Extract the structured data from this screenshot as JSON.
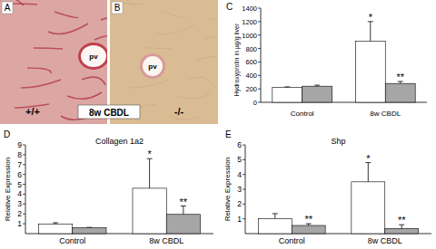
{
  "panels": [
    {
      "letter": "A",
      "vessel": "pv",
      "genotype": "+/+"
    },
    {
      "letter": "B",
      "vessel": "pv",
      "genotype": "-/-"
    }
  ],
  "panel_caption": "8w CBDL",
  "chart_letters": [
    "C",
    "D",
    "E"
  ],
  "chart_data": [
    {
      "type": "bar",
      "ylabel": "Hydroxyprolin in µg/g liver",
      "categories": [
        "Control",
        "8w CBDL"
      ],
      "series": [
        {
          "color": "#ffffff",
          "values": [
            220,
            910
          ],
          "errors": [
            10,
            290
          ]
        },
        {
          "color": "#a6a6a6",
          "values": [
            240,
            280
          ],
          "errors": [
            15,
            30
          ]
        }
      ],
      "ylim": [
        0,
        1400
      ],
      "yticks": [
        0,
        200,
        400,
        600,
        800,
        1000,
        1200,
        1400
      ],
      "annotations": [
        {
          "text": "*",
          "series": 0,
          "category": 1
        },
        {
          "text": "**",
          "series": 1,
          "category": 1
        }
      ]
    },
    {
      "type": "bar",
      "title": "Collagen 1a2",
      "ylabel": "Relative Expression",
      "categories": [
        "Control",
        "8w CBDL"
      ],
      "series": [
        {
          "color": "#ffffff",
          "values": [
            0.95,
            4.6
          ],
          "errors": [
            0.15,
            3.0
          ]
        },
        {
          "color": "#a6a6a6",
          "values": [
            0.6,
            1.95
          ],
          "errors": [
            0.03,
            0.85
          ]
        }
      ],
      "ylim": [
        0,
        9
      ],
      "yticks": [
        1,
        2,
        3,
        4,
        5,
        6,
        7,
        8,
        9
      ],
      "annotations": [
        {
          "text": "*",
          "series": 0,
          "category": 1
        },
        {
          "text": "**",
          "series": 1,
          "category": 1
        }
      ]
    },
    {
      "type": "bar",
      "title": "Shp",
      "ylabel": "Relative Expression",
      "categories": [
        "Control",
        "8w CBDL"
      ],
      "series": [
        {
          "color": "#ffffff",
          "values": [
            1.0,
            3.5
          ],
          "errors": [
            0.35,
            1.3
          ]
        },
        {
          "color": "#a6a6a6",
          "values": [
            0.55,
            0.35
          ],
          "errors": [
            0.12,
            0.25
          ]
        }
      ],
      "ylim": [
        0,
        6
      ],
      "yticks": [
        1,
        2,
        3,
        4,
        5,
        6
      ],
      "annotations": [
        {
          "text": "*",
          "series": 0,
          "category": 1
        },
        {
          "text": "**",
          "series": 1,
          "category": 0
        },
        {
          "text": "**",
          "series": 1,
          "category": 1
        }
      ]
    }
  ]
}
